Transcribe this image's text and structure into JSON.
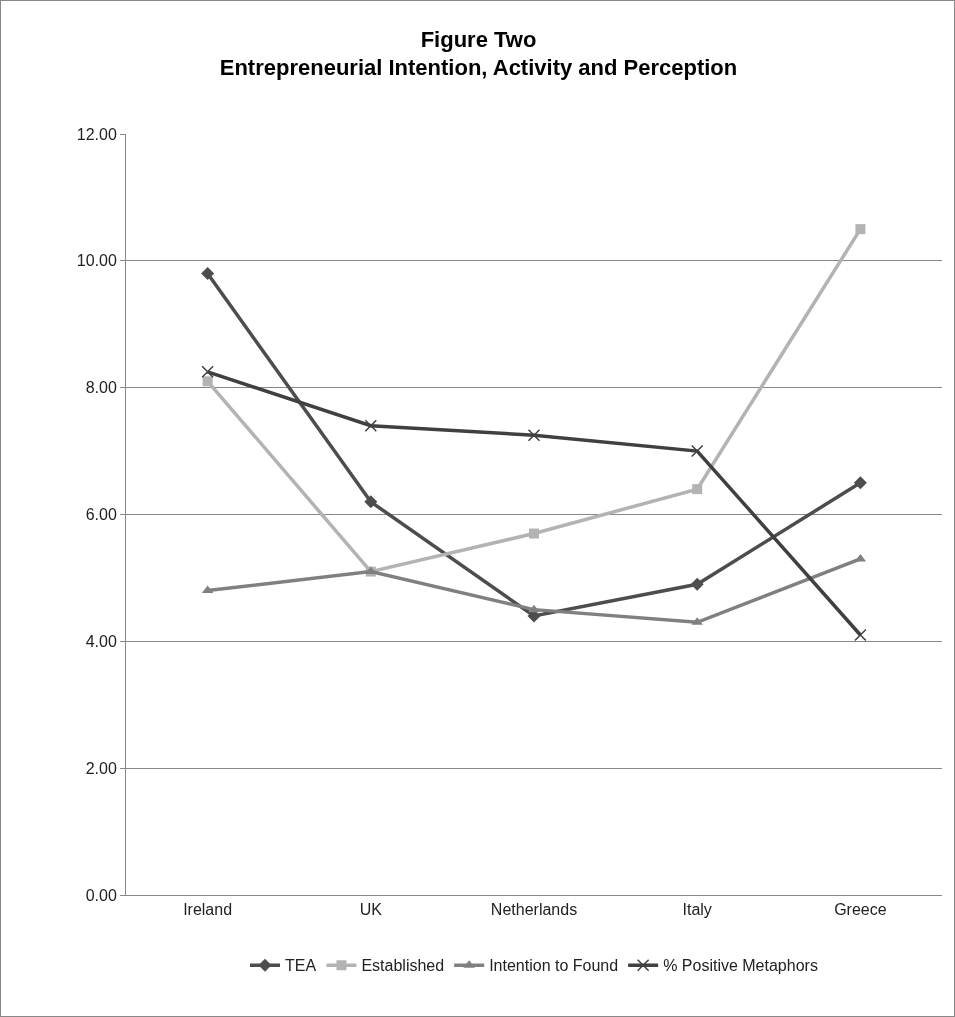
{
  "chart_data": {
    "type": "line",
    "title": "Figure Two\nEntrepreneurial Intention, Activity and Perception",
    "categories": [
      "Ireland",
      "UK",
      "Netherlands",
      "Italy",
      "Greece"
    ],
    "series": [
      {
        "name": "TEA",
        "color": "#4d4d4d",
        "marker": "diamond",
        "values": [
          9.8,
          6.2,
          4.4,
          4.9,
          6.5
        ]
      },
      {
        "name": "Established",
        "color": "#b3b3b3",
        "marker": "square",
        "values": [
          8.1,
          5.1,
          5.7,
          6.4,
          10.5
        ]
      },
      {
        "name": "Intention to Found",
        "color": "#808080",
        "marker": "triangle",
        "values": [
          4.8,
          5.1,
          4.5,
          4.3,
          5.3
        ]
      },
      {
        "name": "% Positive Metaphors",
        "color": "#404040",
        "marker": "cross",
        "values": [
          8.25,
          7.4,
          7.25,
          7.0,
          4.1
        ]
      }
    ],
    "ylim": [
      0,
      12
    ],
    "yticks": [
      {
        "value": 0,
        "label": "0.00"
      },
      {
        "value": 2,
        "label": "2.00"
      },
      {
        "value": 4,
        "label": "4.00"
      },
      {
        "value": 6,
        "label": "6.00"
      },
      {
        "value": 8,
        "label": "8.00"
      },
      {
        "value": 10,
        "label": "10.00"
      },
      {
        "value": 12,
        "label": "12.00"
      }
    ],
    "grid": "y",
    "legend": "bottom",
    "line_style": "solid"
  }
}
